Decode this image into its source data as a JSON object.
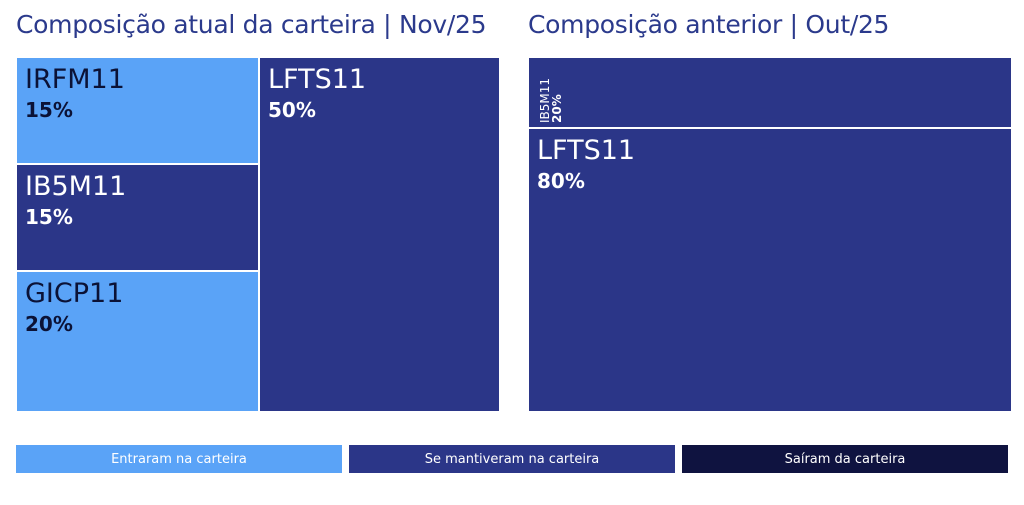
{
  "chart_data": [
    {
      "type": "treemap",
      "title": "Composição atual da carteira | Nov/25",
      "items": [
        {
          "name": "IRFM11",
          "label": "15%",
          "value": 15,
          "status": "entered"
        },
        {
          "name": "IB5M11",
          "label": "15%",
          "value": 15,
          "status": "kept"
        },
        {
          "name": "GICP11",
          "label": "20%",
          "value": 20,
          "status": "entered"
        },
        {
          "name": "LFTS11",
          "label": "50%",
          "value": 50,
          "status": "kept"
        }
      ]
    },
    {
      "type": "treemap",
      "title": "Composição anterior | Out/25",
      "items": [
        {
          "name": "IB5M11",
          "label": "20%",
          "value": 20,
          "status": "kept"
        },
        {
          "name": "LFTS11",
          "label": "80%",
          "value": 80,
          "status": "kept"
        }
      ]
    }
  ],
  "legend": [
    {
      "label": "Entraram na carteira",
      "status": "entered"
    },
    {
      "label": "Se mantiveram na carteira",
      "status": "kept"
    },
    {
      "label": "Saíram da carteira",
      "status": "exited"
    }
  ],
  "colors": {
    "entered": "#5aa3f7",
    "kept": "#2b3688",
    "exited": "#0f1340",
    "title": "#2b3a8c"
  }
}
